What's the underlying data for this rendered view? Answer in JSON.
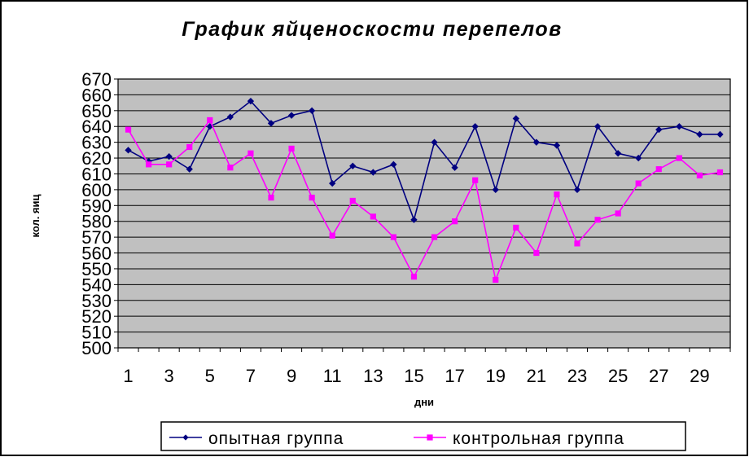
{
  "chart_data": {
    "type": "line",
    "title": "График яйценоскости перепелов",
    "xlabel": "дни",
    "ylabel": "кол. яиц",
    "ylim": [
      500,
      670
    ],
    "ystep": 10,
    "grid": true,
    "legend": "bottom",
    "x": [
      1,
      2,
      3,
      4,
      5,
      6,
      7,
      8,
      9,
      10,
      11,
      12,
      13,
      14,
      15,
      16,
      17,
      18,
      19,
      20,
      21,
      22,
      23,
      24,
      25,
      26,
      27,
      28,
      29,
      30
    ],
    "x_tick_labels": [
      "1",
      "3",
      "5",
      "7",
      "9",
      "11",
      "13",
      "15",
      "17",
      "19",
      "21",
      "23",
      "25",
      "27",
      "29"
    ],
    "series": [
      {
        "name": "опытная группа",
        "color": "#000080",
        "marker": "diamond",
        "values": [
          625,
          618,
          621,
          613,
          640,
          646,
          656,
          642,
          647,
          650,
          604,
          615,
          611,
          616,
          581,
          630,
          614,
          640,
          600,
          645,
          630,
          628,
          600,
          640,
          623,
          620,
          638,
          640,
          635,
          635
        ]
      },
      {
        "name": "контрольная группа",
        "color": "#ff00ff",
        "marker": "square",
        "values": [
          638,
          616,
          616,
          627,
          644,
          614,
          623,
          595,
          626,
          595,
          571,
          593,
          583,
          570,
          545,
          570,
          580,
          606,
          543,
          576,
          560,
          597,
          566,
          581,
          585,
          604,
          613,
          620,
          609,
          611
        ]
      }
    ]
  },
  "colors": {
    "plot_bg": "#c0c0c0",
    "grid": "#000000",
    "frame": "#000000"
  }
}
